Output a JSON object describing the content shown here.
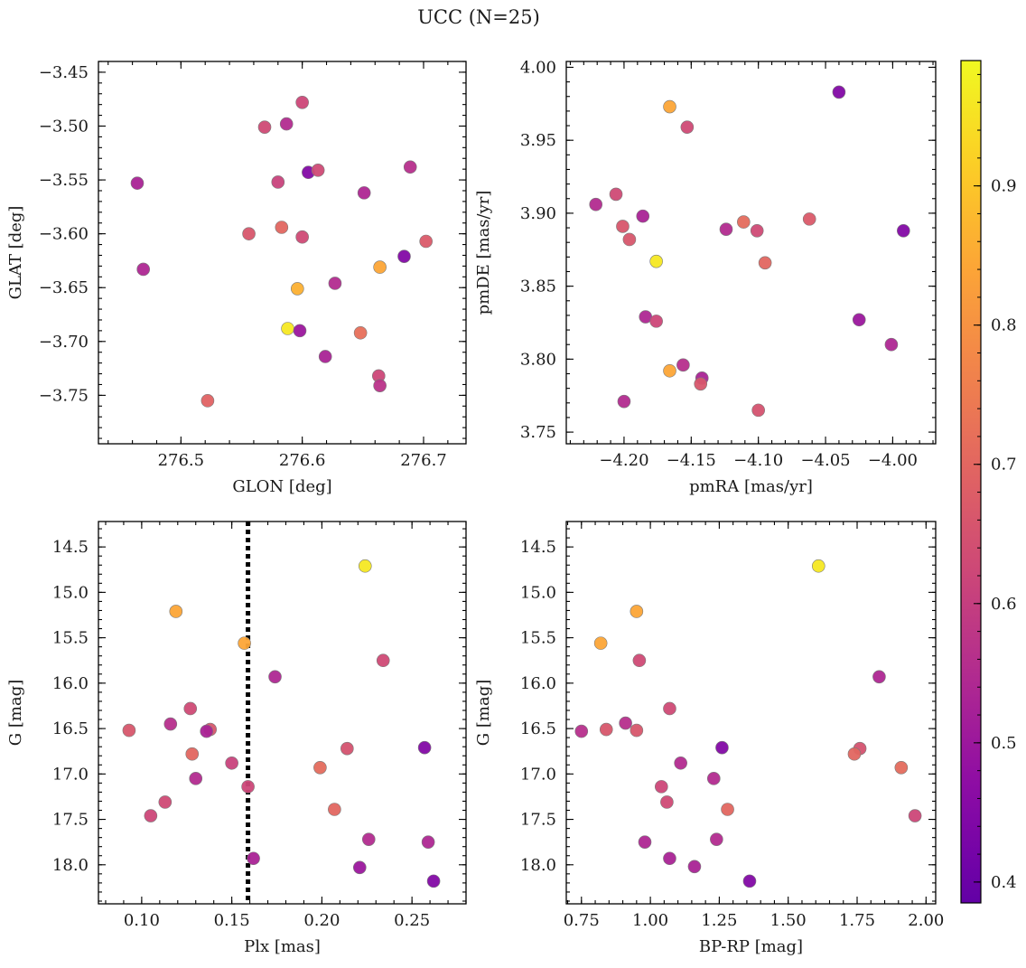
{
  "figure": {
    "title": "UCC (N=25)"
  },
  "colormap": {
    "name": "plasma",
    "range": [
      0.385,
      0.99
    ],
    "ticks": [
      0.4,
      0.5,
      0.6,
      0.7,
      0.8,
      0.9
    ],
    "tick_labels": [
      "0.4",
      "0.5",
      "0.6",
      "0.7",
      "0.8",
      "0.9"
    ]
  },
  "chart_data": [
    {
      "type": "scatter",
      "panel": "top-left",
      "xlabel": "GLON [deg]",
      "ylabel": "GLAT [deg]",
      "xlim": [
        276.432,
        276.735
      ],
      "ylim": [
        -3.795,
        -3.44
      ],
      "y_inverted": false,
      "xticks": [
        276.5,
        276.6,
        276.7
      ],
      "xtick_labels": [
        "276.5",
        "276.6",
        "276.7"
      ],
      "yticks": [
        -3.45,
        -3.5,
        -3.55,
        -3.6,
        -3.65,
        -3.7,
        -3.75
      ],
      "ytick_labels": [
        "−3.45",
        "−3.50",
        "−3.55",
        "−3.60",
        "−3.65",
        "−3.70",
        "−3.75"
      ],
      "points": [
        {
          "x": 276.6,
          "y": -3.478,
          "c": 0.62
        },
        {
          "x": 276.569,
          "y": -3.501,
          "c": 0.63
        },
        {
          "x": 276.587,
          "y": -3.498,
          "c": 0.55
        },
        {
          "x": 276.464,
          "y": -3.553,
          "c": 0.53
        },
        {
          "x": 276.58,
          "y": -3.552,
          "c": 0.61
        },
        {
          "x": 276.605,
          "y": -3.543,
          "c": 0.45
        },
        {
          "x": 276.613,
          "y": -3.541,
          "c": 0.63
        },
        {
          "x": 276.651,
          "y": -3.562,
          "c": 0.54
        },
        {
          "x": 276.689,
          "y": -3.538,
          "c": 0.56
        },
        {
          "x": 276.556,
          "y": -3.6,
          "c": 0.66
        },
        {
          "x": 276.583,
          "y": -3.594,
          "c": 0.7
        },
        {
          "x": 276.6,
          "y": -3.603,
          "c": 0.63
        },
        {
          "x": 276.702,
          "y": -3.607,
          "c": 0.67
        },
        {
          "x": 276.469,
          "y": -3.633,
          "c": 0.54
        },
        {
          "x": 276.664,
          "y": -3.631,
          "c": 0.84
        },
        {
          "x": 276.684,
          "y": -3.621,
          "c": 0.45
        },
        {
          "x": 276.596,
          "y": -3.651,
          "c": 0.86
        },
        {
          "x": 276.627,
          "y": -3.646,
          "c": 0.55
        },
        {
          "x": 276.588,
          "y": -3.688,
          "c": 0.96
        },
        {
          "x": 276.598,
          "y": -3.69,
          "c": 0.5
        },
        {
          "x": 276.648,
          "y": -3.692,
          "c": 0.72
        },
        {
          "x": 276.619,
          "y": -3.714,
          "c": 0.53
        },
        {
          "x": 276.663,
          "y": -3.732,
          "c": 0.62
        },
        {
          "x": 276.664,
          "y": -3.741,
          "c": 0.57
        },
        {
          "x": 276.522,
          "y": -3.755,
          "c": 0.69
        }
      ]
    },
    {
      "type": "scatter",
      "panel": "top-right",
      "xlabel": "pmRA [mas/yr]",
      "ylabel": "pmDE [mas/yr]",
      "xlim": [
        -4.243,
        -3.968
      ],
      "ylim": [
        3.742,
        4.004
      ],
      "y_inverted": false,
      "xticks": [
        -4.2,
        -4.15,
        -4.1,
        -4.05,
        -4.0
      ],
      "xtick_labels": [
        "−4.20",
        "−4.15",
        "−4.10",
        "−4.05",
        "−4.00"
      ],
      "yticks": [
        3.75,
        3.8,
        3.85,
        3.9,
        3.95,
        4.0
      ],
      "ytick_labels": [
        "3.75",
        "3.80",
        "3.85",
        "3.90",
        "3.95",
        "4.00"
      ],
      "points": [
        {
          "x": -4.04,
          "y": 3.983,
          "c": 0.45
        },
        {
          "x": -4.166,
          "y": 3.973,
          "c": 0.84
        },
        {
          "x": -4.153,
          "y": 3.959,
          "c": 0.63
        },
        {
          "x": -4.221,
          "y": 3.906,
          "c": 0.55
        },
        {
          "x": -4.206,
          "y": 3.913,
          "c": 0.63
        },
        {
          "x": -4.201,
          "y": 3.891,
          "c": 0.66
        },
        {
          "x": -4.186,
          "y": 3.898,
          "c": 0.53
        },
        {
          "x": -4.196,
          "y": 3.882,
          "c": 0.66
        },
        {
          "x": -4.124,
          "y": 3.889,
          "c": 0.55
        },
        {
          "x": -4.111,
          "y": 3.894,
          "c": 0.71
        },
        {
          "x": -4.101,
          "y": 3.888,
          "c": 0.63
        },
        {
          "x": -4.062,
          "y": 3.896,
          "c": 0.67
        },
        {
          "x": -3.992,
          "y": 3.888,
          "c": 0.45
        },
        {
          "x": -4.176,
          "y": 3.867,
          "c": 0.96
        },
        {
          "x": -4.095,
          "y": 3.866,
          "c": 0.7
        },
        {
          "x": -4.184,
          "y": 3.829,
          "c": 0.54
        },
        {
          "x": -4.176,
          "y": 3.826,
          "c": 0.62
        },
        {
          "x": -4.025,
          "y": 3.827,
          "c": 0.5
        },
        {
          "x": -4.001,
          "y": 3.81,
          "c": 0.54
        },
        {
          "x": -4.156,
          "y": 3.796,
          "c": 0.56
        },
        {
          "x": -4.166,
          "y": 3.792,
          "c": 0.84
        },
        {
          "x": -4.142,
          "y": 3.787,
          "c": 0.53
        },
        {
          "x": -4.143,
          "y": 3.783,
          "c": 0.66
        },
        {
          "x": -4.2,
          "y": 3.771,
          "c": 0.55
        },
        {
          "x": -4.1,
          "y": 3.765,
          "c": 0.65
        }
      ]
    },
    {
      "type": "scatter",
      "panel": "bottom-left",
      "xlabel": "Plx [mas]",
      "ylabel": "G [mag]",
      "xlim": [
        0.076,
        0.28
      ],
      "ylim": [
        14.22,
        18.43
      ],
      "y_inverted": true,
      "xticks": [
        0.1,
        0.15,
        0.2,
        0.25
      ],
      "xtick_labels": [
        "0.10",
        "0.15",
        "0.20",
        "0.25"
      ],
      "yticks": [
        14.5,
        15.0,
        15.5,
        16.0,
        16.5,
        17.0,
        17.5,
        18.0
      ],
      "ytick_labels": [
        "14.5",
        "15.0",
        "15.5",
        "16.0",
        "16.5",
        "17.0",
        "17.5",
        "18.0"
      ],
      "vline": 0.159,
      "points": [
        {
          "x": 0.224,
          "y": 14.71,
          "c": 0.96
        },
        {
          "x": 0.119,
          "y": 15.21,
          "c": 0.84
        },
        {
          "x": 0.157,
          "y": 15.56,
          "c": 0.84
        },
        {
          "x": 0.234,
          "y": 15.75,
          "c": 0.63
        },
        {
          "x": 0.174,
          "y": 15.93,
          "c": 0.54
        },
        {
          "x": 0.127,
          "y": 16.28,
          "c": 0.63
        },
        {
          "x": 0.116,
          "y": 16.45,
          "c": 0.56
        },
        {
          "x": 0.093,
          "y": 16.52,
          "c": 0.66
        },
        {
          "x": 0.138,
          "y": 16.51,
          "c": 0.66
        },
        {
          "x": 0.136,
          "y": 16.53,
          "c": 0.53
        },
        {
          "x": 0.214,
          "y": 16.72,
          "c": 0.65
        },
        {
          "x": 0.257,
          "y": 16.71,
          "c": 0.45
        },
        {
          "x": 0.128,
          "y": 16.78,
          "c": 0.7
        },
        {
          "x": 0.15,
          "y": 16.88,
          "c": 0.61
        },
        {
          "x": 0.199,
          "y": 16.93,
          "c": 0.71
        },
        {
          "x": 0.13,
          "y": 17.05,
          "c": 0.55
        },
        {
          "x": 0.159,
          "y": 17.14,
          "c": 0.62
        },
        {
          "x": 0.113,
          "y": 17.31,
          "c": 0.63
        },
        {
          "x": 0.207,
          "y": 17.39,
          "c": 0.7
        },
        {
          "x": 0.105,
          "y": 17.46,
          "c": 0.62
        },
        {
          "x": 0.226,
          "y": 17.72,
          "c": 0.55
        },
        {
          "x": 0.259,
          "y": 17.75,
          "c": 0.54
        },
        {
          "x": 0.162,
          "y": 17.93,
          "c": 0.53
        },
        {
          "x": 0.221,
          "y": 18.03,
          "c": 0.5
        },
        {
          "x": 0.262,
          "y": 18.18,
          "c": 0.45
        }
      ]
    },
    {
      "type": "scatter",
      "panel": "bottom-right",
      "xlabel": "BP-RP [mag]",
      "ylabel": "G [mag]",
      "xlim": [
        0.695,
        2.035
      ],
      "ylim": [
        14.22,
        18.43
      ],
      "y_inverted": true,
      "xticks": [
        0.75,
        1.0,
        1.25,
        1.5,
        1.75,
        2.0
      ],
      "xtick_labels": [
        "0.75",
        "1.00",
        "1.25",
        "1.50",
        "1.75",
        "2.00"
      ],
      "yticks": [
        14.5,
        15.0,
        15.5,
        16.0,
        16.5,
        17.0,
        17.5,
        18.0
      ],
      "ytick_labels": [
        "14.5",
        "15.0",
        "15.5",
        "16.0",
        "16.5",
        "17.0",
        "17.5",
        "18.0"
      ],
      "points": [
        {
          "x": 1.61,
          "y": 14.71,
          "c": 0.96
        },
        {
          "x": 0.95,
          "y": 15.21,
          "c": 0.84
        },
        {
          "x": 0.82,
          "y": 15.56,
          "c": 0.84
        },
        {
          "x": 0.96,
          "y": 15.75,
          "c": 0.63
        },
        {
          "x": 1.83,
          "y": 15.93,
          "c": 0.54
        },
        {
          "x": 1.07,
          "y": 16.28,
          "c": 0.63
        },
        {
          "x": 0.91,
          "y": 16.44,
          "c": 0.56
        },
        {
          "x": 0.75,
          "y": 16.53,
          "c": 0.56
        },
        {
          "x": 0.84,
          "y": 16.51,
          "c": 0.66
        },
        {
          "x": 0.95,
          "y": 16.52,
          "c": 0.66
        },
        {
          "x": 1.26,
          "y": 16.71,
          "c": 0.45
        },
        {
          "x": 1.76,
          "y": 16.72,
          "c": 0.65
        },
        {
          "x": 1.74,
          "y": 16.78,
          "c": 0.7
        },
        {
          "x": 1.11,
          "y": 16.88,
          "c": 0.55
        },
        {
          "x": 1.91,
          "y": 16.93,
          "c": 0.71
        },
        {
          "x": 1.23,
          "y": 17.05,
          "c": 0.55
        },
        {
          "x": 1.04,
          "y": 17.14,
          "c": 0.62
        },
        {
          "x": 1.06,
          "y": 17.31,
          "c": 0.63
        },
        {
          "x": 1.28,
          "y": 17.39,
          "c": 0.7
        },
        {
          "x": 1.96,
          "y": 17.46,
          "c": 0.62
        },
        {
          "x": 1.24,
          "y": 17.72,
          "c": 0.55
        },
        {
          "x": 0.98,
          "y": 17.75,
          "c": 0.54
        },
        {
          "x": 1.07,
          "y": 17.93,
          "c": 0.53
        },
        {
          "x": 1.16,
          "y": 18.02,
          "c": 0.53
        },
        {
          "x": 1.36,
          "y": 18.18,
          "c": 0.45
        }
      ]
    }
  ]
}
